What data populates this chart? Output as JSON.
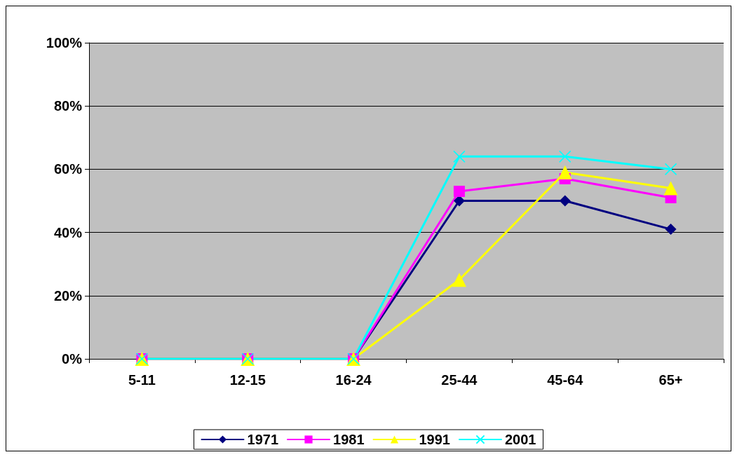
{
  "chart_data": {
    "type": "line",
    "categories": [
      "5-11",
      "12-15",
      "16-24",
      "25-44",
      "45-64",
      "65+"
    ],
    "series": [
      {
        "name": "1971",
        "color": "#000080",
        "marker": "diamond",
        "values": [
          0,
          0,
          0,
          50,
          50,
          41
        ]
      },
      {
        "name": "1981",
        "color": "#ff00ff",
        "marker": "square",
        "values": [
          0,
          0,
          0,
          53,
          57,
          51
        ]
      },
      {
        "name": "1991",
        "color": "#ffff00",
        "marker": "triangle",
        "values": [
          0,
          0,
          0,
          25,
          59,
          54
        ]
      },
      {
        "name": "2001",
        "color": "#00ffff",
        "marker": "cross",
        "values": [
          0,
          0,
          0,
          64,
          64,
          60
        ]
      }
    ],
    "ylim": [
      0,
      100
    ],
    "yticks": [
      {
        "value": 0,
        "label": "0%"
      },
      {
        "value": 20,
        "label": "20%"
      },
      {
        "value": 40,
        "label": "40%"
      },
      {
        "value": 60,
        "label": "60%"
      },
      {
        "value": 80,
        "label": "80%"
      },
      {
        "value": 100,
        "label": "100%"
      }
    ],
    "grid": "y",
    "legend": "bottom",
    "line_style": "solid"
  }
}
